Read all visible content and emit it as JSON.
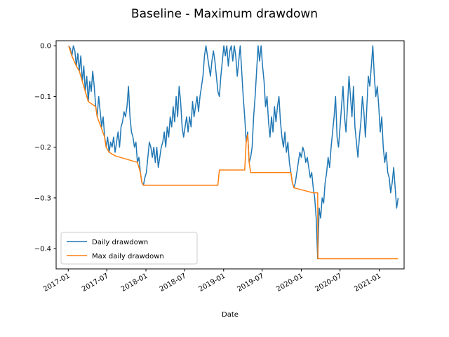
{
  "chart_data": {
    "type": "line",
    "title": "Baseline - Maximum drawdown",
    "xlabel": "Date",
    "ylabel": "",
    "x_axis_type": "date",
    "xlim": [
      "2016-11-05",
      "2021-04-28"
    ],
    "ylim": [
      -0.44,
      0.01
    ],
    "x_ticks": [
      "2017-01",
      "2017-07",
      "2018-01",
      "2018-07",
      "2019-01",
      "2019-07",
      "2020-01",
      "2020-07",
      "2021-01"
    ],
    "y_ticks": [
      0.0,
      -0.1,
      -0.2,
      -0.3,
      -0.4
    ],
    "y_tick_labels": [
      "0.0",
      "−0.1",
      "−0.2",
      "−0.3",
      "−0.4"
    ],
    "grid": false,
    "legend_position": "lower-left",
    "series": [
      {
        "name": "Daily drawdown",
        "color": "#1f77b4",
        "points": [
          [
            "2017-01-03",
            0.0
          ],
          [
            "2017-01-10",
            -0.005
          ],
          [
            "2017-01-18",
            -0.02
          ],
          [
            "2017-01-25",
            0.0
          ],
          [
            "2017-02-01",
            -0.01
          ],
          [
            "2017-02-08",
            -0.04
          ],
          [
            "2017-02-15",
            -0.015
          ],
          [
            "2017-02-22",
            -0.05
          ],
          [
            "2017-03-01",
            -0.02
          ],
          [
            "2017-03-08",
            -0.07
          ],
          [
            "2017-03-15",
            -0.04
          ],
          [
            "2017-03-22",
            -0.09
          ],
          [
            "2017-03-29",
            -0.06
          ],
          [
            "2017-04-05",
            -0.11
          ],
          [
            "2017-04-12",
            -0.07
          ],
          [
            "2017-04-19",
            -0.09
          ],
          [
            "2017-04-26",
            -0.05
          ],
          [
            "2017-05-03",
            -0.08
          ],
          [
            "2017-05-10",
            -0.12
          ],
          [
            "2017-05-17",
            -0.14
          ],
          [
            "2017-05-24",
            -0.1
          ],
          [
            "2017-05-31",
            -0.13
          ],
          [
            "2017-06-07",
            -0.16
          ],
          [
            "2017-06-14",
            -0.14
          ],
          [
            "2017-06-21",
            -0.18
          ],
          [
            "2017-06-28",
            -0.2
          ],
          [
            "2017-07-05",
            -0.18
          ],
          [
            "2017-07-12",
            -0.21
          ],
          [
            "2017-07-19",
            -0.19
          ],
          [
            "2017-07-26",
            -0.2
          ],
          [
            "2017-08-02",
            -0.18
          ],
          [
            "2017-08-09",
            -0.21
          ],
          [
            "2017-08-16",
            -0.19
          ],
          [
            "2017-08-23",
            -0.17
          ],
          [
            "2017-08-30",
            -0.2
          ],
          [
            "2017-09-06",
            -0.16
          ],
          [
            "2017-09-13",
            -0.15
          ],
          [
            "2017-09-20",
            -0.13
          ],
          [
            "2017-09-27",
            -0.14
          ],
          [
            "2017-10-04",
            -0.12
          ],
          [
            "2017-10-11",
            -0.08
          ],
          [
            "2017-10-18",
            -0.14
          ],
          [
            "2017-10-25",
            -0.17
          ],
          [
            "2017-11-01",
            -0.18
          ],
          [
            "2017-11-08",
            -0.2
          ],
          [
            "2017-11-15",
            -0.19
          ],
          [
            "2017-11-22",
            -0.23
          ],
          [
            "2017-11-29",
            -0.22
          ],
          [
            "2017-12-06",
            -0.25
          ],
          [
            "2017-12-13",
            -0.27
          ],
          [
            "2017-12-20",
            -0.275
          ],
          [
            "2017-12-27",
            -0.26
          ],
          [
            "2018-01-03",
            -0.25
          ],
          [
            "2018-01-10",
            -0.22
          ],
          [
            "2018-01-17",
            -0.19
          ],
          [
            "2018-01-24",
            -0.2
          ],
          [
            "2018-01-31",
            -0.22
          ],
          [
            "2018-02-07",
            -0.2
          ],
          [
            "2018-02-14",
            -0.23
          ],
          [
            "2018-02-21",
            -0.2
          ],
          [
            "2018-02-28",
            -0.24
          ],
          [
            "2018-03-07",
            -0.22
          ],
          [
            "2018-03-14",
            -0.2
          ],
          [
            "2018-03-21",
            -0.19
          ],
          [
            "2018-03-28",
            -0.17
          ],
          [
            "2018-04-04",
            -0.2
          ],
          [
            "2018-04-11",
            -0.16
          ],
          [
            "2018-04-18",
            -0.18
          ],
          [
            "2018-04-25",
            -0.14
          ],
          [
            "2018-05-02",
            -0.16
          ],
          [
            "2018-05-09",
            -0.12
          ],
          [
            "2018-05-16",
            -0.15
          ],
          [
            "2018-05-23",
            -0.1
          ],
          [
            "2018-05-30",
            -0.14
          ],
          [
            "2018-06-06",
            -0.08
          ],
          [
            "2018-06-13",
            -0.11
          ],
          [
            "2018-06-20",
            -0.16
          ],
          [
            "2018-06-27",
            -0.18
          ],
          [
            "2018-07-04",
            -0.16
          ],
          [
            "2018-07-11",
            -0.14
          ],
          [
            "2018-07-18",
            -0.17
          ],
          [
            "2018-07-25",
            -0.14
          ],
          [
            "2018-08-01",
            -0.16
          ],
          [
            "2018-08-08",
            -0.11
          ],
          [
            "2018-08-15",
            -0.14
          ],
          [
            "2018-08-22",
            -0.12
          ],
          [
            "2018-08-29",
            -0.1
          ],
          [
            "2018-09-05",
            -0.13
          ],
          [
            "2018-09-12",
            -0.1
          ],
          [
            "2018-09-19",
            -0.08
          ],
          [
            "2018-09-26",
            -0.06
          ],
          [
            "2018-10-03",
            -0.02
          ],
          [
            "2018-10-10",
            0.0
          ],
          [
            "2018-10-17",
            -0.02
          ],
          [
            "2018-10-24",
            -0.04
          ],
          [
            "2018-10-31",
            -0.06
          ],
          [
            "2018-11-07",
            -0.03
          ],
          [
            "2018-11-14",
            -0.01
          ],
          [
            "2018-11-21",
            -0.03
          ],
          [
            "2018-11-28",
            -0.06
          ],
          [
            "2018-12-05",
            -0.09
          ],
          [
            "2018-12-12",
            -0.1
          ],
          [
            "2018-12-19",
            -0.06
          ],
          [
            "2018-12-26",
            -0.03
          ],
          [
            "2019-01-02",
            0.0
          ],
          [
            "2019-01-09",
            -0.02
          ],
          [
            "2019-01-16",
            0.0
          ],
          [
            "2019-01-23",
            -0.04
          ],
          [
            "2019-01-30",
            -0.01
          ],
          [
            "2019-02-06",
            0.0
          ],
          [
            "2019-02-13",
            -0.03
          ],
          [
            "2019-02-20",
            0.0
          ],
          [
            "2019-02-27",
            -0.02
          ],
          [
            "2019-03-06",
            -0.06
          ],
          [
            "2019-03-13",
            -0.03
          ],
          [
            "2019-03-20",
            0.0
          ],
          [
            "2019-03-27",
            -0.05
          ],
          [
            "2019-04-03",
            -0.1
          ],
          [
            "2019-04-10",
            -0.14
          ],
          [
            "2019-04-17",
            -0.19
          ],
          [
            "2019-04-24",
            -0.17
          ],
          [
            "2019-05-01",
            -0.23
          ],
          [
            "2019-05-08",
            -0.22
          ],
          [
            "2019-05-15",
            -0.2
          ],
          [
            "2019-05-22",
            -0.14
          ],
          [
            "2019-05-29",
            -0.1
          ],
          [
            "2019-06-05",
            -0.05
          ],
          [
            "2019-06-12",
            0.0
          ],
          [
            "2019-06-19",
            -0.03
          ],
          [
            "2019-06-26",
            0.0
          ],
          [
            "2019-07-03",
            -0.04
          ],
          [
            "2019-07-10",
            -0.07
          ],
          [
            "2019-07-17",
            -0.12
          ],
          [
            "2019-07-24",
            -0.1
          ],
          [
            "2019-07-31",
            -0.15
          ],
          [
            "2019-08-07",
            -0.18
          ],
          [
            "2019-08-14",
            -0.14
          ],
          [
            "2019-08-21",
            -0.17
          ],
          [
            "2019-08-28",
            -0.12
          ],
          [
            "2019-09-04",
            -0.15
          ],
          [
            "2019-09-11",
            -0.12
          ],
          [
            "2019-09-18",
            -0.1
          ],
          [
            "2019-09-25",
            -0.15
          ],
          [
            "2019-10-02",
            -0.18
          ],
          [
            "2019-10-09",
            -0.2
          ],
          [
            "2019-10-16",
            -0.17
          ],
          [
            "2019-10-23",
            -0.21
          ],
          [
            "2019-10-30",
            -0.19
          ],
          [
            "2019-11-06",
            -0.23
          ],
          [
            "2019-11-13",
            -0.25
          ],
          [
            "2019-11-20",
            -0.27
          ],
          [
            "2019-11-27",
            -0.28
          ],
          [
            "2019-12-04",
            -0.27
          ],
          [
            "2019-12-11",
            -0.25
          ],
          [
            "2019-12-18",
            -0.23
          ],
          [
            "2019-12-25",
            -0.21
          ],
          [
            "2020-01-01",
            -0.22
          ],
          [
            "2020-01-08",
            -0.2
          ],
          [
            "2020-01-15",
            -0.21
          ],
          [
            "2020-01-22",
            -0.23
          ],
          [
            "2020-01-29",
            -0.22
          ],
          [
            "2020-02-05",
            -0.24
          ],
          [
            "2020-02-12",
            -0.26
          ],
          [
            "2020-02-19",
            -0.25
          ],
          [
            "2020-02-26",
            -0.28
          ],
          [
            "2020-03-04",
            -0.3
          ],
          [
            "2020-03-11",
            -0.34
          ],
          [
            "2020-03-18",
            -0.42
          ],
          [
            "2020-03-25",
            -0.32
          ],
          [
            "2020-04-01",
            -0.34
          ],
          [
            "2020-04-08",
            -0.3
          ],
          [
            "2020-04-15",
            -0.31
          ],
          [
            "2020-04-22",
            -0.27
          ],
          [
            "2020-04-29",
            -0.25
          ],
          [
            "2020-05-06",
            -0.22
          ],
          [
            "2020-05-13",
            -0.24
          ],
          [
            "2020-05-20",
            -0.2
          ],
          [
            "2020-05-27",
            -0.17
          ],
          [
            "2020-06-03",
            -0.14
          ],
          [
            "2020-06-10",
            -0.1
          ],
          [
            "2020-06-17",
            -0.18
          ],
          [
            "2020-06-24",
            -0.2
          ],
          [
            "2020-07-01",
            -0.16
          ],
          [
            "2020-07-08",
            -0.12
          ],
          [
            "2020-07-15",
            -0.08
          ],
          [
            "2020-07-22",
            -0.14
          ],
          [
            "2020-07-29",
            -0.17
          ],
          [
            "2020-08-05",
            -0.12
          ],
          [
            "2020-08-12",
            -0.06
          ],
          [
            "2020-08-19",
            -0.1
          ],
          [
            "2020-08-26",
            -0.14
          ],
          [
            "2020-09-02",
            -0.08
          ],
          [
            "2020-09-09",
            -0.16
          ],
          [
            "2020-09-16",
            -0.19
          ],
          [
            "2020-09-23",
            -0.22
          ],
          [
            "2020-09-30",
            -0.18
          ],
          [
            "2020-10-07",
            -0.15
          ],
          [
            "2020-10-14",
            -0.1
          ],
          [
            "2020-10-21",
            -0.13
          ],
          [
            "2020-10-28",
            -0.18
          ],
          [
            "2020-11-04",
            -0.12
          ],
          [
            "2020-11-11",
            -0.06
          ],
          [
            "2020-11-18",
            -0.08
          ],
          [
            "2020-11-25",
            -0.04
          ],
          [
            "2020-12-02",
            0.0
          ],
          [
            "2020-12-09",
            -0.06
          ],
          [
            "2020-12-16",
            -0.1
          ],
          [
            "2020-12-23",
            -0.08
          ],
          [
            "2020-12-30",
            -0.12
          ],
          [
            "2021-01-06",
            -0.17
          ],
          [
            "2021-01-13",
            -0.14
          ],
          [
            "2021-01-20",
            -0.2
          ],
          [
            "2021-01-27",
            -0.23
          ],
          [
            "2021-02-03",
            -0.21
          ],
          [
            "2021-02-10",
            -0.25
          ],
          [
            "2021-02-17",
            -0.26
          ],
          [
            "2021-02-24",
            -0.29
          ],
          [
            "2021-03-03",
            -0.27
          ],
          [
            "2021-03-10",
            -0.24
          ],
          [
            "2021-03-17",
            -0.28
          ],
          [
            "2021-03-24",
            -0.32
          ],
          [
            "2021-03-31",
            -0.3
          ]
        ]
      },
      {
        "name": "Max daily drawdown",
        "color": "#ff7f0e",
        "points": [
          [
            "2017-01-03",
            0.0
          ],
          [
            "2017-01-18",
            -0.02
          ],
          [
            "2017-02-08",
            -0.04
          ],
          [
            "2017-02-22",
            -0.05
          ],
          [
            "2017-03-08",
            -0.07
          ],
          [
            "2017-04-05",
            -0.11
          ],
          [
            "2017-05-10",
            -0.12
          ],
          [
            "2017-05-17",
            -0.14
          ],
          [
            "2017-06-21",
            -0.18
          ],
          [
            "2017-06-28",
            -0.2
          ],
          [
            "2017-07-12",
            -0.21
          ],
          [
            "2017-08-09",
            -0.217
          ],
          [
            "2017-11-22",
            -0.23
          ],
          [
            "2017-12-06",
            -0.25
          ],
          [
            "2017-12-13",
            -0.27
          ],
          [
            "2017-12-20",
            -0.275
          ],
          [
            "2018-12-05",
            -0.275
          ],
          [
            "2018-12-12",
            -0.245
          ],
          [
            "2019-04-10",
            -0.245
          ],
          [
            "2019-04-17",
            -0.19
          ],
          [
            "2019-04-24",
            -0.175
          ],
          [
            "2019-05-01",
            -0.23
          ],
          [
            "2019-05-08",
            -0.25
          ],
          [
            "2019-11-13",
            -0.25
          ],
          [
            "2019-11-20",
            -0.27
          ],
          [
            "2019-11-27",
            -0.28
          ],
          [
            "2020-02-26",
            -0.29
          ],
          [
            "2020-03-18",
            -0.29
          ],
          [
            "2020-03-19",
            -0.42
          ],
          [
            "2021-03-31",
            -0.42
          ]
        ]
      }
    ]
  }
}
